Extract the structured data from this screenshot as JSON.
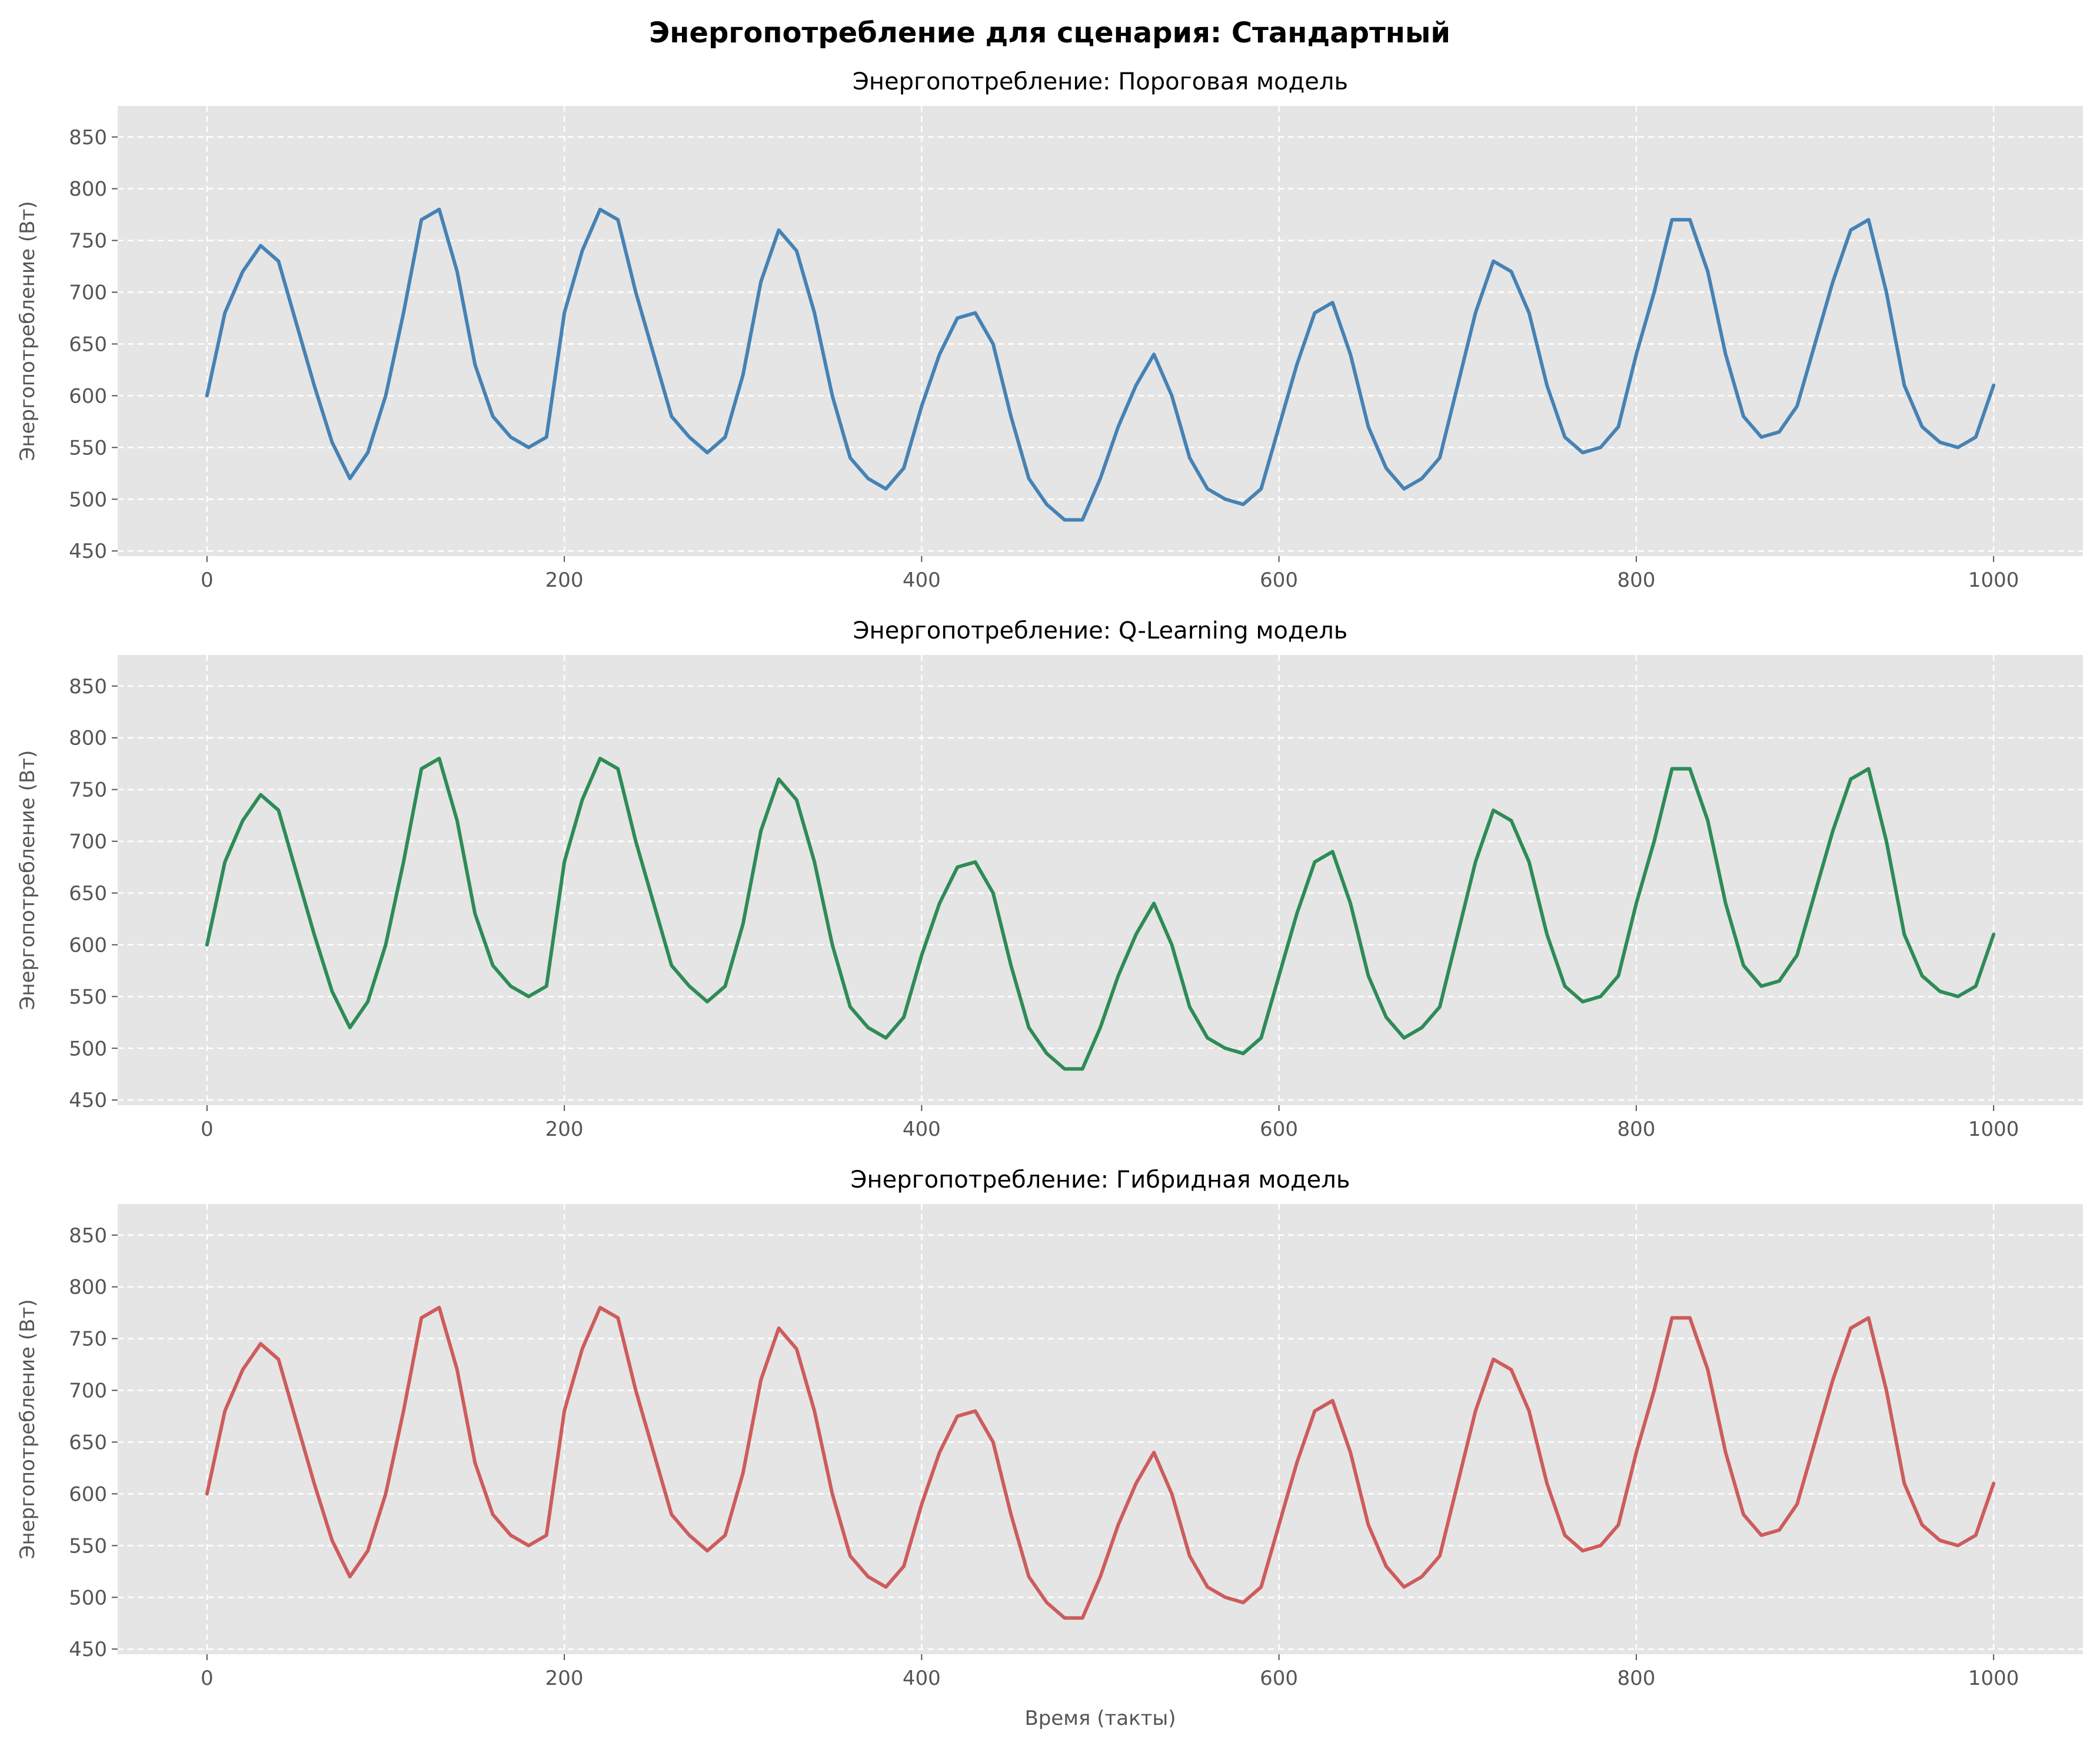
{
  "suptitle": "Энергопотребление для сценария: Стандартный",
  "chart_data": [
    {
      "type": "line",
      "title": "Энергопотребление: Пороговая модель",
      "xlabel": "",
      "ylabel": "Энергопотребление (Вт)",
      "xlim": [
        -50,
        1050
      ],
      "ylim": [
        445,
        880
      ],
      "xticks": [
        0,
        200,
        400,
        600,
        800,
        1000
      ],
      "yticks": [
        450,
        500,
        550,
        600,
        650,
        700,
        750,
        800,
        850
      ],
      "grid": true,
      "color": "#4682b4",
      "series": [
        {
          "x": [
            0,
            10,
            20,
            30,
            40,
            50,
            60,
            70,
            80,
            90,
            100,
            110,
            120,
            130,
            140,
            150,
            160,
            170,
            180,
            190,
            200,
            210,
            220,
            230,
            240,
            250,
            260,
            270,
            280,
            290,
            300,
            310,
            320,
            330,
            340,
            350,
            360,
            370,
            380,
            390,
            400,
            410,
            420,
            430,
            440,
            450,
            460,
            470,
            480,
            490,
            500,
            510,
            520,
            530,
            540,
            550,
            560,
            570,
            580,
            590,
            600,
            610,
            620,
            630,
            640,
            650,
            660,
            670,
            680,
            690,
            700,
            710,
            720,
            730,
            740,
            750,
            760,
            770,
            780,
            790,
            800,
            810,
            820,
            830,
            840,
            850,
            860,
            870,
            880,
            890,
            900,
            910,
            920,
            930,
            940,
            950,
            960,
            970,
            980,
            990,
            1000
          ],
          "values": [
            600,
            680,
            720,
            745,
            730,
            670,
            610,
            555,
            520,
            545,
            600,
            680,
            770,
            780,
            720,
            630,
            580,
            560,
            550,
            560,
            680,
            740,
            780,
            770,
            700,
            640,
            580,
            560,
            545,
            560,
            620,
            710,
            760,
            740,
            680,
            600,
            540,
            520,
            510,
            530,
            590,
            640,
            675,
            680,
            650,
            580,
            520,
            495,
            480,
            480,
            520,
            570,
            610,
            640,
            600,
            540,
            510,
            500,
            495,
            510,
            570,
            630,
            680,
            690,
            640,
            570,
            530,
            510,
            520,
            540,
            610,
            680,
            730,
            720,
            680,
            610,
            560,
            545,
            550,
            570,
            640,
            700,
            770,
            770,
            720,
            640,
            580,
            560,
            565,
            590,
            650,
            710,
            760,
            770,
            700,
            610,
            570,
            555,
            550,
            560,
            610
          ]
        }
      ]
    },
    {
      "type": "line",
      "title": "Энергопотребление: Q-Learning модель",
      "xlabel": "",
      "ylabel": "Энергопотребление (Вт)",
      "xlim": [
        -50,
        1050
      ],
      "ylim": [
        445,
        880
      ],
      "xticks": [
        0,
        200,
        400,
        600,
        800,
        1000
      ],
      "yticks": [
        450,
        500,
        550,
        600,
        650,
        700,
        750,
        800,
        850
      ],
      "grid": true,
      "color": "#2e8b57",
      "series": [
        {
          "x": [
            0,
            10,
            20,
            30,
            40,
            50,
            60,
            70,
            80,
            90,
            100,
            110,
            120,
            130,
            140,
            150,
            160,
            170,
            180,
            190,
            200,
            210,
            220,
            230,
            240,
            250,
            260,
            270,
            280,
            290,
            300,
            310,
            320,
            330,
            340,
            350,
            360,
            370,
            380,
            390,
            400,
            410,
            420,
            430,
            440,
            450,
            460,
            470,
            480,
            490,
            500,
            510,
            520,
            530,
            540,
            550,
            560,
            570,
            580,
            590,
            600,
            610,
            620,
            630,
            640,
            650,
            660,
            670,
            680,
            690,
            700,
            710,
            720,
            730,
            740,
            750,
            760,
            770,
            780,
            790,
            800,
            810,
            820,
            830,
            840,
            850,
            860,
            870,
            880,
            890,
            900,
            910,
            920,
            930,
            940,
            950,
            960,
            970,
            980,
            990,
            1000
          ],
          "values": [
            600,
            680,
            720,
            745,
            730,
            670,
            610,
            555,
            520,
            545,
            600,
            680,
            770,
            780,
            720,
            630,
            580,
            560,
            550,
            560,
            680,
            740,
            780,
            770,
            700,
            640,
            580,
            560,
            545,
            560,
            620,
            710,
            760,
            740,
            680,
            600,
            540,
            520,
            510,
            530,
            590,
            640,
            675,
            680,
            650,
            580,
            520,
            495,
            480,
            480,
            520,
            570,
            610,
            640,
            600,
            540,
            510,
            500,
            495,
            510,
            570,
            630,
            680,
            690,
            640,
            570,
            530,
            510,
            520,
            540,
            610,
            680,
            730,
            720,
            680,
            610,
            560,
            545,
            550,
            570,
            640,
            700,
            770,
            770,
            720,
            640,
            580,
            560,
            565,
            590,
            650,
            710,
            760,
            770,
            700,
            610,
            570,
            555,
            550,
            560,
            610
          ]
        }
      ]
    },
    {
      "type": "line",
      "title": "Энергопотребление: Гибридная модель",
      "xlabel": "Время (такты)",
      "ylabel": "Энергопотребление (Вт)",
      "xlim": [
        -50,
        1050
      ],
      "ylim": [
        445,
        880
      ],
      "xticks": [
        0,
        200,
        400,
        600,
        800,
        1000
      ],
      "yticks": [
        450,
        500,
        550,
        600,
        650,
        700,
        750,
        800,
        850
      ],
      "grid": true,
      "color": "#cd5c5c",
      "series": [
        {
          "x": [
            0,
            10,
            20,
            30,
            40,
            50,
            60,
            70,
            80,
            90,
            100,
            110,
            120,
            130,
            140,
            150,
            160,
            170,
            180,
            190,
            200,
            210,
            220,
            230,
            240,
            250,
            260,
            270,
            280,
            290,
            300,
            310,
            320,
            330,
            340,
            350,
            360,
            370,
            380,
            390,
            400,
            410,
            420,
            430,
            440,
            450,
            460,
            470,
            480,
            490,
            500,
            510,
            520,
            530,
            540,
            550,
            560,
            570,
            580,
            590,
            600,
            610,
            620,
            630,
            640,
            650,
            660,
            670,
            680,
            690,
            700,
            710,
            720,
            730,
            740,
            750,
            760,
            770,
            780,
            790,
            800,
            810,
            820,
            830,
            840,
            850,
            860,
            870,
            880,
            890,
            900,
            910,
            920,
            930,
            940,
            950,
            960,
            970,
            980,
            990,
            1000
          ],
          "values": [
            600,
            680,
            720,
            745,
            730,
            670,
            610,
            555,
            520,
            545,
            600,
            680,
            770,
            780,
            720,
            630,
            580,
            560,
            550,
            560,
            680,
            740,
            780,
            770,
            700,
            640,
            580,
            560,
            545,
            560,
            620,
            710,
            760,
            740,
            680,
            600,
            540,
            520,
            510,
            530,
            590,
            640,
            675,
            680,
            650,
            580,
            520,
            495,
            480,
            480,
            520,
            570,
            610,
            640,
            600,
            540,
            510,
            500,
            495,
            510,
            570,
            630,
            680,
            690,
            640,
            570,
            530,
            510,
            520,
            540,
            610,
            680,
            730,
            720,
            680,
            610,
            560,
            545,
            550,
            570,
            640,
            700,
            770,
            770,
            720,
            640,
            580,
            560,
            565,
            590,
            650,
            710,
            760,
            770,
            700,
            610,
            570,
            555,
            550,
            560,
            610
          ]
        }
      ]
    }
  ]
}
